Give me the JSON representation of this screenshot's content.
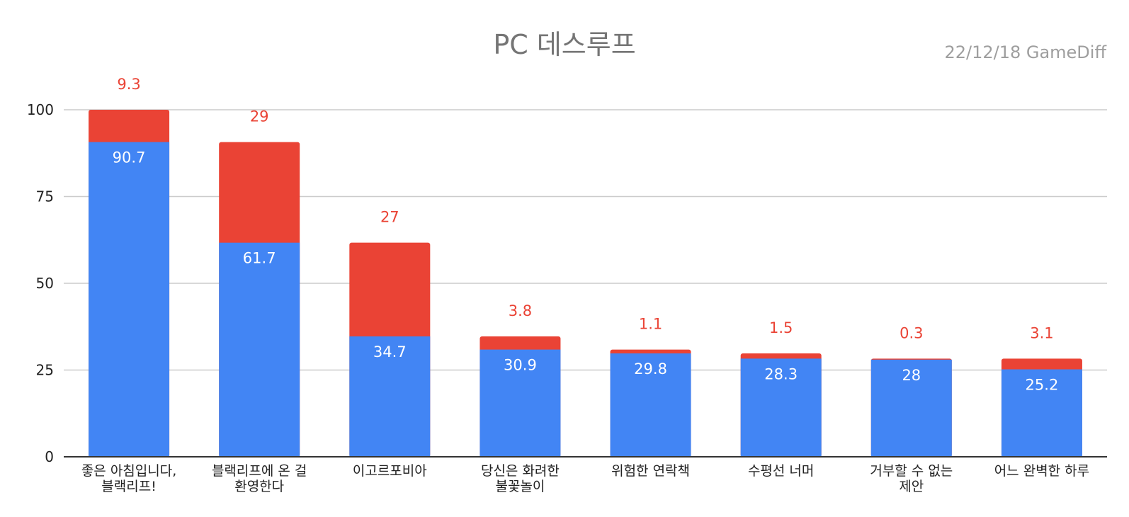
{
  "chart_data": {
    "type": "bar",
    "stacked": true,
    "title": "PC 데스루프",
    "subtitle": "22/12/18  GameDiff",
    "categories": [
      [
        "좋은 아침입니다,",
        "블랙리프!"
      ],
      [
        "블랙리프에 온 걸",
        "환영한다"
      ],
      [
        "이고르포비아"
      ],
      [
        "당신은 화려한",
        "불꽃놀이"
      ],
      [
        "위험한 연락책"
      ],
      [
        "수평선 너머"
      ],
      [
        "거부할 수 없는",
        "제안"
      ],
      [
        "어느 완벽한 하루"
      ]
    ],
    "series": [
      {
        "color": "#4285f4",
        "values": [
          90.7,
          61.7,
          34.7,
          30.9,
          29.8,
          28.3,
          28,
          25.2
        ],
        "labels": [
          "90.7",
          "61.7",
          "34.7",
          "30.9",
          "29.8",
          "28.3",
          "28",
          "25.2"
        ]
      },
      {
        "color": "#ea4335",
        "values": [
          9.3,
          29,
          27,
          3.8,
          1.1,
          1.5,
          0.3,
          3.1
        ],
        "labels": [
          "9.3",
          "29",
          "27",
          "3.8",
          "1.1",
          "1.5",
          "0.3",
          "3.1"
        ]
      }
    ],
    "ylim": [
      0,
      100
    ],
    "yticks": [
      "0",
      "25",
      "50",
      "75",
      "100"
    ],
    "grid": true,
    "legend": "none",
    "xlabel": "",
    "ylabel": ""
  }
}
